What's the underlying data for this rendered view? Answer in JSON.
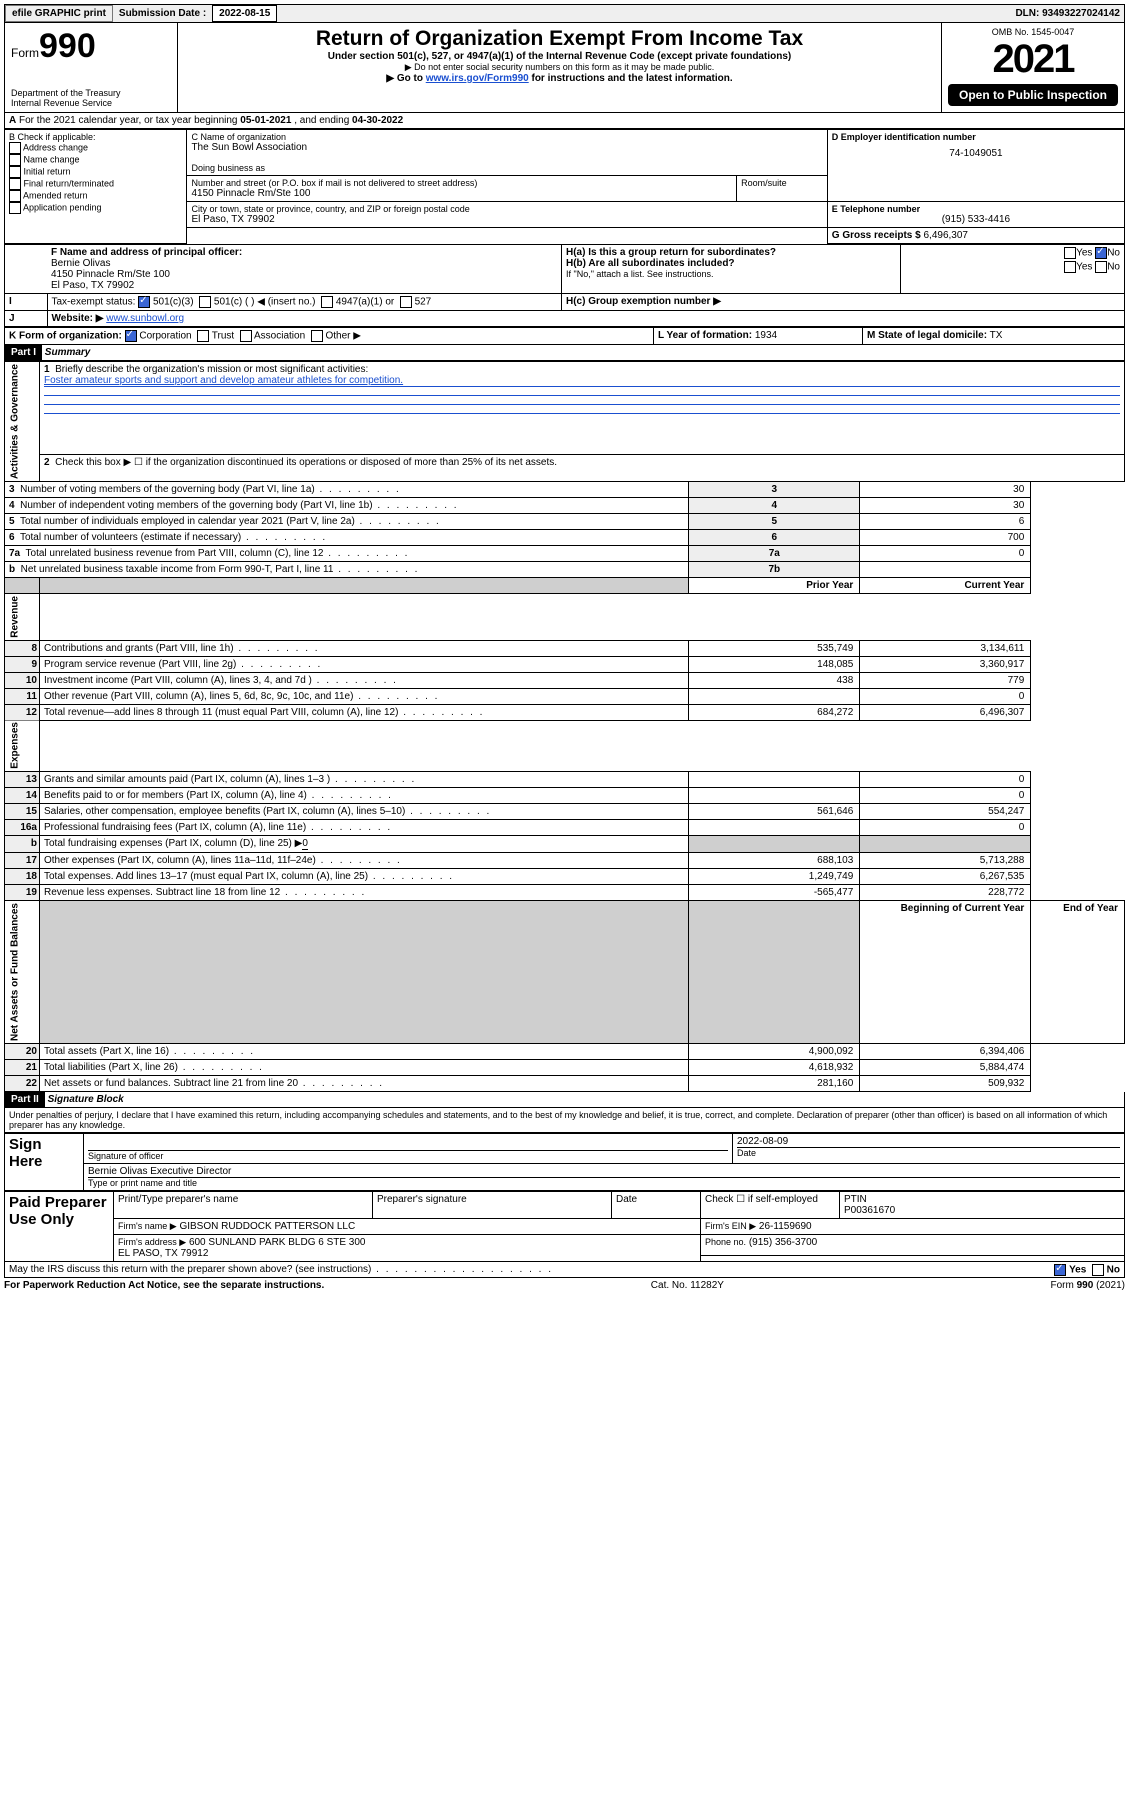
{
  "colors": {
    "link": "#1a4fd0",
    "check_bg": "#3b66d4",
    "grid": "#000000",
    "shade": "#cfcfcf",
    "bg": "#ffffff"
  },
  "topbar": {
    "efile_btn": "efile GRAPHIC print",
    "sub_label": "Submission Date :",
    "sub_date": "2022-08-15",
    "dln_label": "DLN:",
    "dln": "93493227024142"
  },
  "header": {
    "form_prefix": "Form",
    "form_no": "990",
    "dept1": "Department of the Treasury",
    "dept2": "Internal Revenue Service",
    "title": "Return of Organization Exempt From Income Tax",
    "sub1": "Under section 501(c), 527, or 4947(a)(1) of the Internal Revenue Code (except private foundations)",
    "sub2": "▶ Do not enter social security numbers on this form as it may be made public.",
    "sub3_pre": "▶ Go to ",
    "sub3_link": "www.irs.gov/Form990",
    "sub3_post": " for instructions and the latest information.",
    "omb": "OMB No. 1545-0047",
    "year": "2021",
    "open_pub": "Open to Public Inspection"
  },
  "A": {
    "text": "For the 2021 calendar year, or tax year beginning ",
    "begin": "05-01-2021",
    "mid": " , and ending ",
    "end": "04-30-2022"
  },
  "B": {
    "label": "B Check if applicable:",
    "items": [
      "Address change",
      "Name change",
      "Initial return",
      "Final return/terminated",
      "Amended return",
      "Application pending"
    ]
  },
  "C": {
    "name_label": "C Name of organization",
    "name": "The Sun Bowl Association",
    "dba_label": "Doing business as",
    "addr_label": "Number and street (or P.O. box if mail is not delivered to street address)",
    "room_label": "Room/suite",
    "addr": "4150 Pinnacle Rm/Ste 100",
    "city_label": "City or town, state or province, country, and ZIP or foreign postal code",
    "city": "El Paso, TX  79902"
  },
  "D": {
    "label": "D Employer identification number",
    "val": "74-1049051"
  },
  "E": {
    "label": "E Telephone number",
    "val": "(915) 533-4416"
  },
  "G": {
    "label": "G Gross receipts $",
    "val": "6,496,307"
  },
  "F": {
    "label": "F Name and address of principal officer:",
    "name": "Bernie Olivas",
    "addr": "4150 Pinnacle Rm/Ste 100",
    "city": "El Paso, TX  79902"
  },
  "H": {
    "a": "H(a)  Is this a group return for subordinates?",
    "a_yes": "Yes",
    "a_no": "No",
    "b": "H(b)  Are all subordinates included?",
    "b_yes": "Yes",
    "b_no": "No",
    "b_note": "If \"No,\" attach a list. See instructions.",
    "c": "H(c)  Group exemption number ▶"
  },
  "I": {
    "label": "Tax-exempt status:",
    "opts": [
      "501(c)(3)",
      "501(c) (  ) ◀ (insert no.)",
      "4947(a)(1) or",
      "527"
    ]
  },
  "J": {
    "label": "Website: ▶",
    "val": "www.sunbowl.org"
  },
  "K": {
    "label": "K Form of organization:",
    "opts": [
      "Corporation",
      "Trust",
      "Association",
      "Other ▶"
    ]
  },
  "L": {
    "label": "L Year of formation:",
    "val": "1934"
  },
  "M": {
    "label": "M State of legal domicile:",
    "val": "TX"
  },
  "part1": {
    "hdr": "Part I",
    "title": "Summary"
  },
  "governance": {
    "side": "Activities & Governance",
    "l1": "Briefly describe the organization's mission or most significant activities:",
    "l1_val": "Foster amateur sports and support and develop amateur athletes for competition.",
    "l2": "Check this box ▶ ☐  if the organization discontinued its operations or disposed of more than 25% of its net assets.",
    "rows": [
      {
        "n": "3",
        "t": "Number of voting members of the governing body (Part VI, line 1a)",
        "k": "3",
        "v": "30"
      },
      {
        "n": "4",
        "t": "Number of independent voting members of the governing body (Part VI, line 1b)",
        "k": "4",
        "v": "30"
      },
      {
        "n": "5",
        "t": "Total number of individuals employed in calendar year 2021 (Part V, line 2a)",
        "k": "5",
        "v": "6"
      },
      {
        "n": "6",
        "t": "Total number of volunteers (estimate if necessary)",
        "k": "6",
        "v": "700"
      },
      {
        "n": "7a",
        "t": "Total unrelated business revenue from Part VIII, column (C), line 12",
        "k": "7a",
        "v": "0"
      },
      {
        "n": "b",
        "t": "Net unrelated business taxable income from Form 990-T, Part I, line 11",
        "k": "7b",
        "v": ""
      }
    ]
  },
  "yearhdr": {
    "prior": "Prior Year",
    "curr": "Current Year"
  },
  "revenue": {
    "side": "Revenue",
    "rows": [
      {
        "n": "8",
        "t": "Contributions and grants (Part VIII, line 1h)",
        "p": "535,749",
        "c": "3,134,611"
      },
      {
        "n": "9",
        "t": "Program service revenue (Part VIII, line 2g)",
        "p": "148,085",
        "c": "3,360,917"
      },
      {
        "n": "10",
        "t": "Investment income (Part VIII, column (A), lines 3, 4, and 7d )",
        "p": "438",
        "c": "779"
      },
      {
        "n": "11",
        "t": "Other revenue (Part VIII, column (A), lines 5, 6d, 8c, 9c, 10c, and 11e)",
        "p": "",
        "c": "0"
      },
      {
        "n": "12",
        "t": "Total revenue—add lines 8 through 11 (must equal Part VIII, column (A), line 12)",
        "p": "684,272",
        "c": "6,496,307"
      }
    ]
  },
  "expenses": {
    "side": "Expenses",
    "rows": [
      {
        "n": "13",
        "t": "Grants and similar amounts paid (Part IX, column (A), lines 1–3 )",
        "p": "",
        "c": "0"
      },
      {
        "n": "14",
        "t": "Benefits paid to or for members (Part IX, column (A), line 4)",
        "p": "",
        "c": "0"
      },
      {
        "n": "15",
        "t": "Salaries, other compensation, employee benefits (Part IX, column (A), lines 5–10)",
        "p": "561,646",
        "c": "554,247"
      },
      {
        "n": "16a",
        "t": "Professional fundraising fees (Part IX, column (A), line 11e)",
        "p": "",
        "c": "0"
      }
    ],
    "l16b_pre": "Total fundraising expenses (Part IX, column (D), line 25) ▶",
    "l16b_val": "0",
    "rows2": [
      {
        "n": "17",
        "t": "Other expenses (Part IX, column (A), lines 11a–11d, 11f–24e)",
        "p": "688,103",
        "c": "5,713,288"
      },
      {
        "n": "18",
        "t": "Total expenses. Add lines 13–17 (must equal Part IX, column (A), line 25)",
        "p": "1,249,749",
        "c": "6,267,535"
      },
      {
        "n": "19",
        "t": "Revenue less expenses. Subtract line 18 from line 12",
        "p": "-565,477",
        "c": "228,772"
      }
    ]
  },
  "nethdr": {
    "b": "Beginning of Current Year",
    "e": "End of Year"
  },
  "net": {
    "side": "Net Assets or Fund Balances",
    "rows": [
      {
        "n": "20",
        "t": "Total assets (Part X, line 16)",
        "p": "4,900,092",
        "c": "6,394,406"
      },
      {
        "n": "21",
        "t": "Total liabilities (Part X, line 26)",
        "p": "4,618,932",
        "c": "5,884,474"
      },
      {
        "n": "22",
        "t": "Net assets or fund balances. Subtract line 21 from line 20",
        "p": "281,160",
        "c": "509,932"
      }
    ]
  },
  "part2": {
    "hdr": "Part II",
    "title": "Signature Block"
  },
  "penalties": "Under penalties of perjury, I declare that I have examined this return, including accompanying schedules and statements, and to the best of my knowledge and belief, it is true, correct, and complete. Declaration of preparer (other than officer) is based on all information of which preparer has any knowledge.",
  "sign": {
    "here": "Sign Here",
    "sig_lbl": "Signature of officer",
    "date_lbl": "Date",
    "date": "2022-08-09",
    "name": "Bernie Olivas  Executive Director",
    "name_lbl": "Type or print name and title"
  },
  "paid": {
    "here": "Paid Preparer Use Only",
    "h1": "Print/Type preparer's name",
    "h2": "Preparer's signature",
    "h3": "Date",
    "h4_pre": "Check ☐ if self-employed",
    "h5": "PTIN",
    "ptin": "P00361670",
    "firm_lbl": "Firm's name      ▶",
    "firm": "GIBSON RUDDOCK PATTERSON LLC",
    "ein_lbl": "Firm's EIN ▶",
    "ein": "26-1159690",
    "addr_lbl": "Firm's address ▶",
    "addr": "600 SUNLAND PARK BLDG 6 STE 300",
    "addr2": "EL PASO, TX  79912",
    "phone_lbl": "Phone no.",
    "phone": "(915) 356-3700"
  },
  "discuss": {
    "q": "May the IRS discuss this return with the preparer shown above? (see instructions)",
    "yes": "Yes",
    "no": "No"
  },
  "footer": {
    "l": "For Paperwork Reduction Act Notice, see the separate instructions.",
    "m": "Cat. No. 11282Y",
    "r": "Form 990 (2021)"
  }
}
